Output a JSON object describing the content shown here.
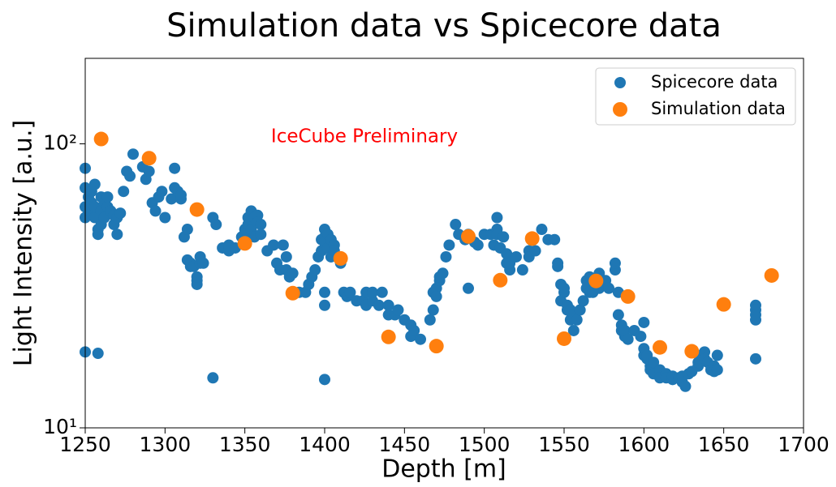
{
  "chart_data": {
    "type": "scatter",
    "title": "Simulation data vs Spicecore data",
    "x_label": "Depth [m]",
    "y_label": "Light Intensity [a.u.]",
    "annotation": "IceCube Preliminary",
    "log_y": true,
    "legend": "upper right",
    "xlim": [
      1250,
      1700
    ],
    "xticks": [
      1250,
      1300,
      1350,
      1400,
      1450,
      1500,
      1550,
      1600,
      1650,
      1700
    ],
    "ylim": [
      10,
      200
    ],
    "yticks": [
      {
        "value": 10,
        "label": "10¹"
      },
      {
        "value": 100,
        "label": "10²"
      }
    ],
    "series": [
      {
        "name": "Spicecore data",
        "color": "#1f77b4",
        "x": [
          1250,
          1250,
          1250,
          1250,
          1250,
          1252,
          1252,
          1254,
          1254,
          1256,
          1256,
          1256,
          1258,
          1258,
          1258,
          1260,
          1260,
          1260,
          1262,
          1262,
          1264,
          1264,
          1266,
          1268,
          1268,
          1270,
          1270,
          1272,
          1274,
          1276,
          1278,
          1280,
          1286,
          1288,
          1290,
          1292,
          1294,
          1296,
          1298,
          1300,
          1304,
          1306,
          1306,
          1308,
          1310,
          1310,
          1312,
          1314,
          1314,
          1316,
          1316,
          1318,
          1320,
          1320,
          1320,
          1322,
          1322,
          1324,
          1330,
          1330,
          1332,
          1336,
          1340,
          1340,
          1344,
          1348,
          1350,
          1350,
          1352,
          1352,
          1354,
          1354,
          1356,
          1356,
          1358,
          1358,
          1360,
          1360,
          1364,
          1368,
          1370,
          1372,
          1374,
          1376,
          1376,
          1378,
          1380,
          1384,
          1388,
          1390,
          1392,
          1394,
          1396,
          1398,
          1398,
          1400,
          1400,
          1400,
          1400,
          1400,
          1400,
          1402,
          1402,
          1404,
          1404,
          1406,
          1406,
          1410,
          1412,
          1414,
          1416,
          1420,
          1424,
          1426,
          1426,
          1430,
          1430,
          1434,
          1436,
          1440,
          1440,
          1444,
          1446,
          1450,
          1454,
          1454,
          1456,
          1460,
          1466,
          1468,
          1468,
          1470,
          1470,
          1472,
          1472,
          1474,
          1476,
          1478,
          1482,
          1484,
          1488,
          1490,
          1490,
          1494,
          1496,
          1500,
          1504,
          1506,
          1508,
          1508,
          1508,
          1510,
          1512,
          1514,
          1514,
          1516,
          1516,
          1520,
          1524,
          1528,
          1528,
          1532,
          1536,
          1540,
          1544,
          1546,
          1546,
          1548,
          1548,
          1550,
          1550,
          1552,
          1552,
          1554,
          1554,
          1556,
          1556,
          1558,
          1560,
          1562,
          1564,
          1564,
          1566,
          1566,
          1568,
          1572,
          1572,
          1576,
          1578,
          1582,
          1582,
          1584,
          1584,
          1586,
          1586,
          1588,
          1588,
          1590,
          1594,
          1598,
          1600,
          1600,
          1600,
          1602,
          1602,
          1604,
          1604,
          1606,
          1606,
          1610,
          1610,
          1614,
          1614,
          1618,
          1618,
          1622,
          1624,
          1624,
          1626,
          1628,
          1630,
          1634,
          1634,
          1636,
          1638,
          1638,
          1640,
          1642,
          1644,
          1644,
          1646,
          1646,
          1670,
          1670,
          1670,
          1670,
          1670
        ],
        "values": [
          82,
          70,
          60,
          55,
          18.5,
          65,
          58,
          68,
          62,
          72,
          55,
          60,
          50,
          48,
          18.3,
          65,
          58,
          52,
          62,
          55,
          60,
          65,
          58,
          52,
          56,
          48,
          55,
          57,
          68,
          80,
          77,
          92,
          83,
          75,
          80,
          62,
          58,
          65,
          68,
          55,
          64,
          82,
          70,
          68,
          64,
          66,
          47,
          50,
          39,
          37,
          38,
          37,
          32,
          33,
          34,
          38,
          40,
          38,
          55,
          15,
          52,
          43,
          42,
          44,
          43,
          47,
          48,
          50,
          55,
          52,
          58,
          50,
          55,
          47,
          56,
          53,
          52,
          48,
          42,
          44,
          38,
          36,
          44,
          40,
          36,
          34,
          35,
          30,
          30,
          32,
          34,
          36,
          40,
          42,
          46,
          50,
          47,
          45,
          30,
          27,
          14.8,
          48,
          43,
          46,
          40,
          44,
          42,
          38,
          30,
          29,
          30,
          28,
          28,
          27,
          30,
          28,
          30,
          27,
          30,
          25,
          27,
          25,
          26,
          24,
          21,
          23,
          22,
          20.5,
          24,
          26,
          30,
          31,
          29,
          33,
          34,
          35,
          40,
          44,
          52,
          48,
          46,
          48,
          31,
          45,
          44,
          48,
          48,
          44,
          50,
          55,
          48,
          43,
          47,
          41,
          38,
          36,
          38,
          40,
          36,
          42,
          40,
          42,
          50,
          46,
          46,
          38,
          37,
          32,
          28,
          30,
          31,
          26,
          27,
          26,
          24,
          22,
          25,
          24,
          26,
          28,
          31,
          33,
          30,
          34,
          30,
          35,
          31,
          33,
          31,
          36,
          38,
          30,
          25,
          23,
          22,
          21,
          22,
          20.5,
          22,
          21,
          23.5,
          19,
          18,
          17.5,
          18,
          16.5,
          16,
          17,
          15.5,
          16,
          15,
          15.5,
          15,
          14.8,
          15.2,
          15,
          14.5,
          15.2,
          14,
          15.5,
          15.8,
          16.5,
          17,
          18,
          18.5,
          17.5,
          17,
          16,
          16.5,
          15.8,
          18,
          16,
          27,
          26,
          25,
          24,
          17.5
        ]
      },
      {
        "name": "Simulation data",
        "color": "#ff7f0e",
        "x": [
          1260,
          1290,
          1320,
          1350,
          1380,
          1410,
          1440,
          1470,
          1490,
          1510,
          1530,
          1550,
          1570,
          1590,
          1610,
          1630,
          1650,
          1680
        ],
        "values": [
          104,
          89,
          58.7,
          44.6,
          29.8,
          39.5,
          20.9,
          19.4,
          47.2,
          33.1,
          46.4,
          20.6,
          32.9,
          29.0,
          19.2,
          18.6,
          27.2,
          34.4
        ]
      }
    ]
  }
}
